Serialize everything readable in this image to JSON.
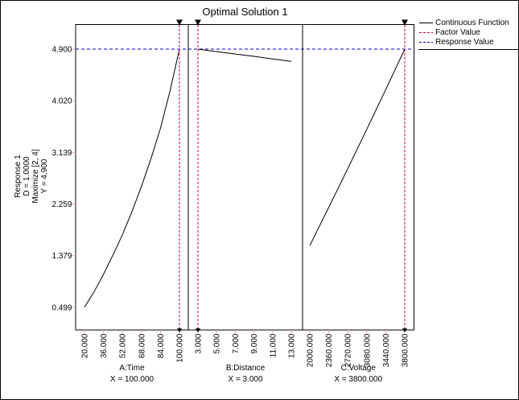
{
  "title": "Optimal Solution 1",
  "y_axis": {
    "label_lines": [
      "Response 1",
      "D = 1.0000",
      "Maximize [2, 4]",
      "Y = 4.900"
    ],
    "tick_labels": [
      "4.900",
      "4.020",
      "3.139",
      "2.259",
      "1.379",
      "0.499"
    ]
  },
  "legend": {
    "items": [
      {
        "label": "Continuous Function",
        "color": "#000000",
        "dash": "solid"
      },
      {
        "label": "Factor Value",
        "color": "#cc0033",
        "dash": "dashed"
      },
      {
        "label": "Response Value",
        "color": "#0000d0",
        "dash": "dashed"
      }
    ]
  },
  "panels": [
    {
      "axis_label": "A:Time",
      "factor_label": "X = 100.000",
      "tick_labels": [
        "20.000",
        "36.000",
        "52.000",
        "68.000",
        "84.000",
        "100.000"
      ]
    },
    {
      "axis_label": "B:Distance",
      "factor_label": "X = 3.000",
      "tick_labels": [
        "3.000",
        "5.000",
        "7.000",
        "9.000",
        "11.000",
        "13.000"
      ]
    },
    {
      "axis_label": "C:Voltage",
      "factor_label": "X = 3800.000",
      "tick_labels": [
        "2000.000",
        "2360.000",
        "2720.000",
        "3080.000",
        "3440.000",
        "3800.000"
      ]
    }
  ],
  "colors": {
    "continuous_function": "#000000",
    "factor_value": "#cc0033",
    "response_value": "#0000d0",
    "tick_mark": "#dd9999",
    "border": "#000000"
  },
  "chart_data": {
    "type": "line",
    "title": "Optimal Solution 1",
    "response": {
      "name": "Response 1",
      "desirability": 1.0,
      "goal": "Maximize [2, 4]",
      "predicted_y": 4.9
    },
    "response_value": 4.9,
    "y_ticks": [
      4.9,
      4.02,
      3.139,
      2.259,
      1.379,
      0.499
    ],
    "legend_entries": [
      "Continuous Function",
      "Factor Value",
      "Response Value"
    ],
    "panels": [
      {
        "factor": "A:Time",
        "factor_value": 100.0,
        "x_ticks": [
          20,
          36,
          52,
          68,
          84,
          100
        ],
        "x_data_range": [
          20,
          100
        ],
        "curve": [
          [
            20,
            0.499
          ],
          [
            28,
            0.76
          ],
          [
            36,
            1.06
          ],
          [
            44,
            1.39
          ],
          [
            52,
            1.74
          ],
          [
            60,
            2.13
          ],
          [
            68,
            2.56
          ],
          [
            76,
            3.03
          ],
          [
            84,
            3.55
          ],
          [
            92,
            4.18
          ],
          [
            100,
            4.9
          ]
        ]
      },
      {
        "factor": "B:Distance",
        "factor_value": 3.0,
        "x_ticks": [
          3,
          5,
          7,
          9,
          11,
          13
        ],
        "x_data_range": [
          3,
          13
        ],
        "curve": [
          [
            3,
            4.9
          ],
          [
            5,
            4.857
          ],
          [
            7,
            4.816
          ],
          [
            9,
            4.776
          ],
          [
            11,
            4.733
          ],
          [
            13,
            4.69
          ]
        ]
      },
      {
        "factor": "C:Voltage",
        "factor_value": 3800.0,
        "x_ticks": [
          2000,
          2360,
          2720,
          3080,
          3440,
          3800
        ],
        "x_data_range": [
          2000,
          3800
        ],
        "curve": [
          [
            2000,
            1.55
          ],
          [
            2360,
            2.205
          ],
          [
            2720,
            2.863
          ],
          [
            3080,
            3.532
          ],
          [
            3440,
            4.21
          ],
          [
            3800,
            4.9
          ]
        ]
      }
    ]
  }
}
